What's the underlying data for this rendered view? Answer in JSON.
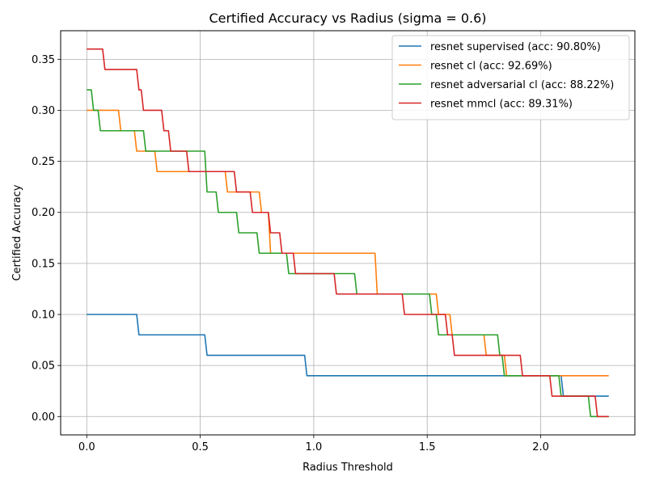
{
  "chart_data": {
    "type": "line",
    "title": "Certified Accuracy vs Radius (sigma = 0.6)",
    "xlabel": "Radius Threshold",
    "ylabel": "Certified Accuracy",
    "xlim": [
      -0.115,
      2.415
    ],
    "ylim": [
      -0.018,
      0.378
    ],
    "xticks": [
      0.0,
      0.5,
      1.0,
      1.5,
      2.0
    ],
    "xtick_labels": [
      "0.0",
      "0.5",
      "1.0",
      "1.5",
      "2.0"
    ],
    "yticks": [
      0.0,
      0.05,
      0.1,
      0.15,
      0.2,
      0.25,
      0.3,
      0.35
    ],
    "ytick_labels": [
      "0.00",
      "0.05",
      "0.10",
      "0.15",
      "0.20",
      "0.25",
      "0.30",
      "0.35"
    ],
    "grid": true,
    "legend_position": "top-right",
    "series": [
      {
        "name": "resnet supervised (acc: 90.80%)",
        "color": "#1f77b4",
        "x": [
          0.0,
          0.22,
          0.23,
          0.52,
          0.53,
          0.96,
          0.97,
          2.09,
          2.1,
          2.3
        ],
        "y": [
          0.1,
          0.1,
          0.08,
          0.08,
          0.06,
          0.06,
          0.04,
          0.04,
          0.02,
          0.02
        ]
      },
      {
        "name": "resnet cl (acc: 92.69%)",
        "color": "#ff7f0e",
        "x": [
          0.0,
          0.14,
          0.15,
          0.21,
          0.22,
          0.3,
          0.31,
          0.54,
          0.55,
          0.61,
          0.62,
          0.76,
          0.77,
          0.8,
          0.81,
          1.27,
          1.28,
          1.54,
          1.55,
          1.6,
          1.61,
          1.75,
          1.76,
          1.84,
          1.85,
          2.3
        ],
        "y": [
          0.3,
          0.3,
          0.28,
          0.28,
          0.26,
          0.26,
          0.24,
          0.24,
          0.24,
          0.24,
          0.22,
          0.22,
          0.2,
          0.2,
          0.16,
          0.16,
          0.12,
          0.12,
          0.1,
          0.1,
          0.08,
          0.08,
          0.06,
          0.06,
          0.04,
          0.04
        ]
      },
      {
        "name": "resnet adversarial cl (acc: 88.22%)",
        "color": "#2ca02c",
        "x": [
          0.0,
          0.02,
          0.03,
          0.05,
          0.06,
          0.25,
          0.26,
          0.52,
          0.53,
          0.57,
          0.58,
          0.66,
          0.67,
          0.75,
          0.76,
          0.88,
          0.89,
          1.18,
          1.19,
          1.51,
          1.52,
          1.54,
          1.55,
          1.81,
          1.82,
          1.83,
          1.84,
          2.08,
          2.09,
          2.21,
          2.22,
          2.3
        ],
        "y": [
          0.32,
          0.32,
          0.3,
          0.3,
          0.28,
          0.28,
          0.26,
          0.26,
          0.22,
          0.22,
          0.2,
          0.2,
          0.18,
          0.18,
          0.16,
          0.16,
          0.14,
          0.14,
          0.12,
          0.12,
          0.1,
          0.1,
          0.08,
          0.08,
          0.06,
          0.06,
          0.04,
          0.04,
          0.02,
          0.02,
          0.0,
          0.0
        ]
      },
      {
        "name": "resnet mmcl (acc: 89.31%)",
        "color": "#d62728",
        "x": [
          0.0,
          0.07,
          0.08,
          0.22,
          0.23,
          0.24,
          0.25,
          0.33,
          0.34,
          0.36,
          0.37,
          0.44,
          0.45,
          0.65,
          0.66,
          0.72,
          0.73,
          0.8,
          0.81,
          0.85,
          0.86,
          0.91,
          0.92,
          1.09,
          1.1,
          1.39,
          1.4,
          1.58,
          1.59,
          1.61,
          1.62,
          1.91,
          1.92,
          2.04,
          2.05,
          2.24,
          2.25,
          2.3
        ],
        "y": [
          0.36,
          0.36,
          0.34,
          0.34,
          0.32,
          0.32,
          0.3,
          0.3,
          0.28,
          0.28,
          0.26,
          0.26,
          0.24,
          0.24,
          0.22,
          0.22,
          0.2,
          0.2,
          0.18,
          0.18,
          0.16,
          0.16,
          0.14,
          0.14,
          0.12,
          0.12,
          0.1,
          0.1,
          0.08,
          0.08,
          0.06,
          0.06,
          0.04,
          0.04,
          0.02,
          0.02,
          0.0,
          0.0
        ]
      }
    ]
  }
}
